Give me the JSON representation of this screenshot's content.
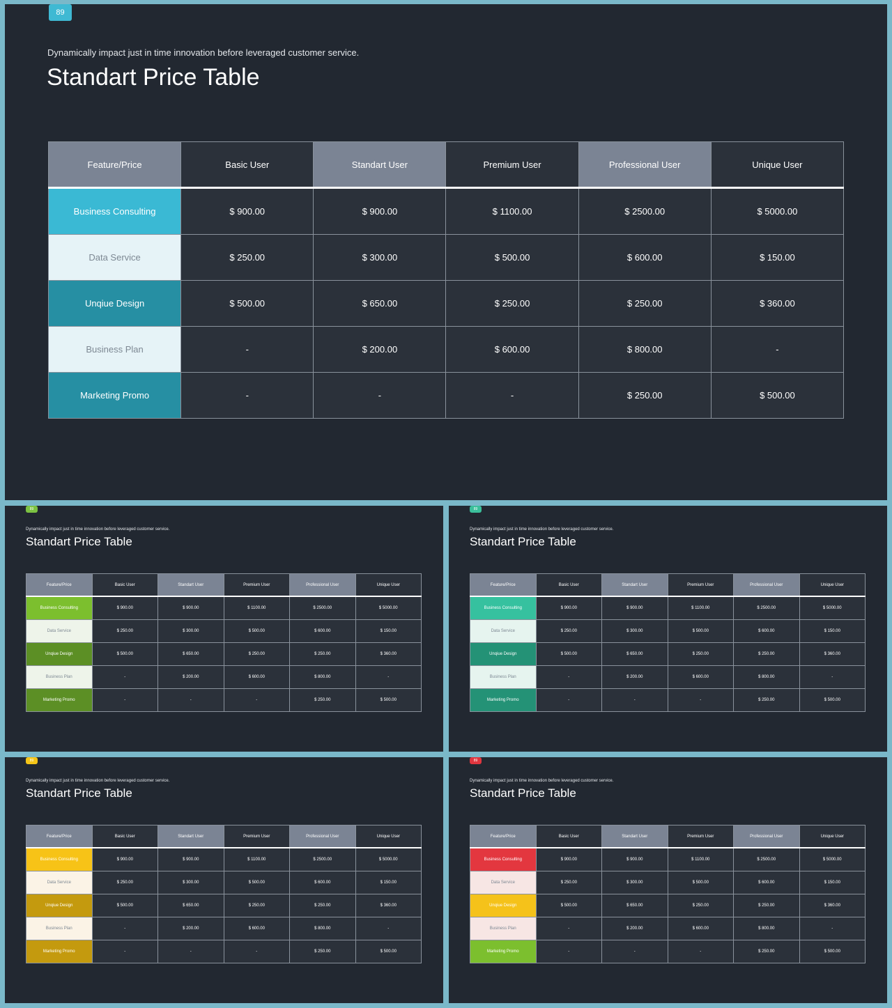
{
  "columns": [
    "Feature/Price",
    "Basic User",
    "Standart User",
    "Premium User",
    "Professional User",
    "Unique User"
  ],
  "rows": [
    {
      "feature": "Business Consulting",
      "prices": [
        "$ 900.00",
        "$ 900.00",
        "$ 1100.00",
        "$ 2500.00",
        "$ 5000.00"
      ]
    },
    {
      "feature": "Data Service",
      "prices": [
        "$ 250.00",
        "$ 300.00",
        "$ 500.00",
        "$ 600.00",
        "$ 150.00"
      ]
    },
    {
      "feature": "Unqiue Design",
      "prices": [
        "$ 500.00",
        "$ 650.00",
        "$ 250.00",
        "$ 250.00",
        "$ 360.00"
      ]
    },
    {
      "feature": "Business Plan",
      "prices": [
        "-",
        "$ 200.00",
        "$ 600.00",
        "$ 800.00",
        "-"
      ]
    },
    {
      "feature": "Marketing Promo",
      "prices": [
        "-",
        "-",
        "-",
        "$ 250.00",
        "$ 500.00"
      ]
    }
  ],
  "slides": [
    {
      "id": "main",
      "number": "89",
      "badge_color": "#3fb9d3",
      "subtitle": "Dynamically impact just in time innovation  before leveraged customer service.",
      "title": "Standart Price Table",
      "row_styles": [
        {
          "bg": "#3ab9d4",
          "fg": "#ffffff"
        },
        {
          "bg": "#e6f3f7",
          "fg": "#7d8893"
        },
        {
          "bg": "#268fa3",
          "fg": "#ffffff"
        },
        {
          "bg": "#e6f3f7",
          "fg": "#7d8893"
        },
        {
          "bg": "#268fa3",
          "fg": "#ffffff"
        }
      ]
    },
    {
      "id": "s0",
      "number": "89",
      "badge_color": "#7cc242",
      "subtitle": "Dynamically impact just in time innovation  before leveraged customer service.",
      "title": "Standart Price Table",
      "row_styles": [
        {
          "bg": "#7cbf2e",
          "fg": "#ffffff"
        },
        {
          "bg": "#eef4ea",
          "fg": "#7d8893"
        },
        {
          "bg": "#5c8f25",
          "fg": "#ffffff"
        },
        {
          "bg": "#eef4ea",
          "fg": "#7d8893"
        },
        {
          "bg": "#5c8f25",
          "fg": "#ffffff"
        }
      ]
    },
    {
      "id": "s1",
      "number": "89",
      "badge_color": "#3bbf9b",
      "subtitle": "Dynamically impact just in time innovation  before leveraged customer service.",
      "title": "Standart Price Table",
      "row_styles": [
        {
          "bg": "#36c19f",
          "fg": "#ffffff"
        },
        {
          "bg": "#e6f4ef",
          "fg": "#7d8893"
        },
        {
          "bg": "#249276",
          "fg": "#ffffff"
        },
        {
          "bg": "#e6f4ef",
          "fg": "#7d8893"
        },
        {
          "bg": "#249276",
          "fg": "#ffffff"
        }
      ]
    },
    {
      "id": "s2",
      "number": "89",
      "badge_color": "#f5c518",
      "subtitle": "Dynamically impact just in time innovation  before leveraged customer service.",
      "title": "Standart Price Table",
      "row_styles": [
        {
          "bg": "#f7c317",
          "fg": "#ffffff"
        },
        {
          "bg": "#fbf3e6",
          "fg": "#7d8893"
        },
        {
          "bg": "#c49a0e",
          "fg": "#ffffff"
        },
        {
          "bg": "#fbf3e6",
          "fg": "#7d8893"
        },
        {
          "bg": "#c49a0e",
          "fg": "#ffffff"
        }
      ]
    },
    {
      "id": "s3",
      "number": "89",
      "badge_color": "#e0363f",
      "subtitle": "Dynamically impact just in time innovation  before leveraged customer service.",
      "title": "Standart Price Table",
      "row_styles": [
        {
          "bg": "#e3373f",
          "fg": "#ffffff"
        },
        {
          "bg": "#f7e6e4",
          "fg": "#7d8893"
        },
        {
          "bg": "#f5c21a",
          "fg": "#ffffff"
        },
        {
          "bg": "#f7e6e4",
          "fg": "#7d8893"
        },
        {
          "bg": "#7cbf2e",
          "fg": "#ffffff"
        }
      ]
    }
  ]
}
